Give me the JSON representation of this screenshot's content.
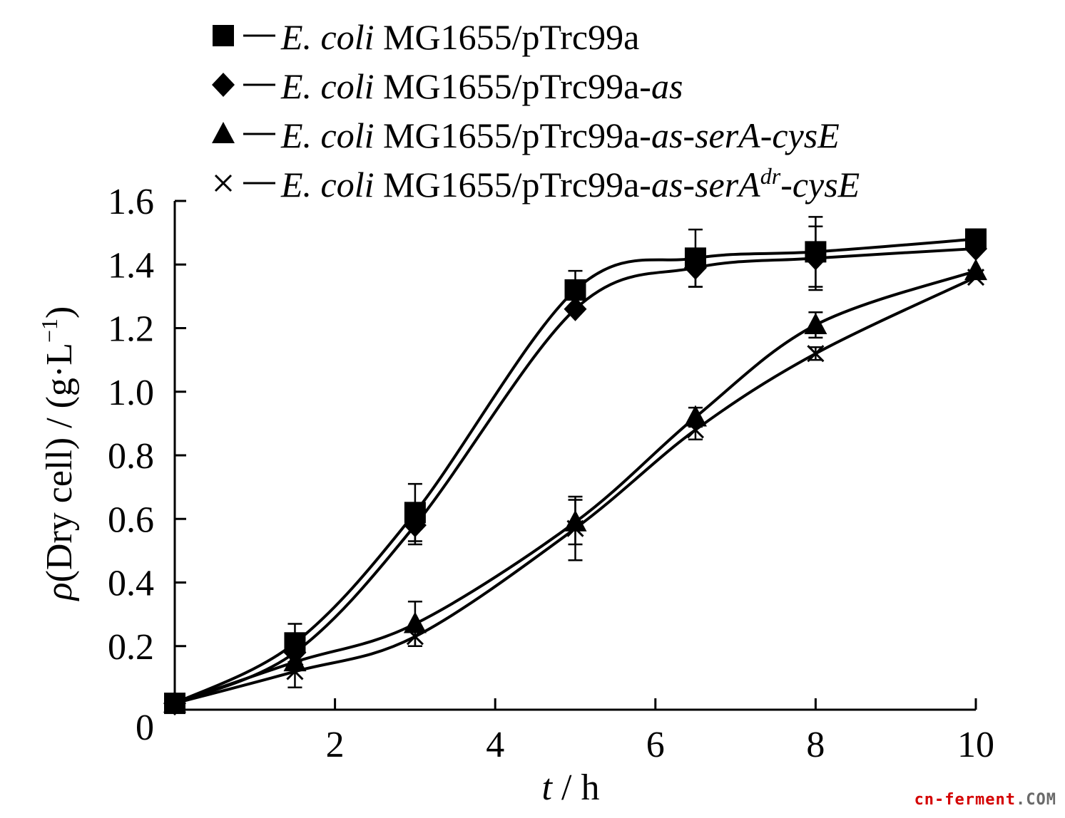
{
  "chart_data": {
    "type": "line",
    "title": "",
    "xlabel_var": "t",
    "xlabel_unit": " / h",
    "ylabel_prefix": "(Dry cell) / (g·L",
    "ylabel_sup": "−1",
    "ylabel_suffix": ")",
    "ylabel_symbol": "ρ",
    "xlim": [
      0,
      10
    ],
    "ylim": [
      0,
      1.6
    ],
    "x_ticks": [
      2,
      4,
      6,
      8,
      10
    ],
    "x_tick_labels": [
      "2",
      "4",
      "6",
      "8",
      "10"
    ],
    "y_ticks": [
      0,
      0.2,
      0.4,
      0.6,
      0.8,
      1.0,
      1.2,
      1.4,
      1.6
    ],
    "y_tick_labels": [
      "0",
      "0.2",
      "0.4",
      "0.6",
      "0.8",
      "1.0",
      "1.2",
      "1.4",
      "1.6"
    ],
    "grid": false,
    "legend_position": "top",
    "x": [
      0,
      1.5,
      3,
      5,
      6.5,
      8,
      10
    ],
    "series": [
      {
        "name": "E. coli MG1655/pTrc99a",
        "legend_parts": [
          {
            "text": "E. coli",
            "italic": true
          },
          {
            "text": " MG1655/pTrc99a",
            "italic": false
          }
        ],
        "marker": "square",
        "values": [
          0.02,
          0.21,
          0.62,
          1.32,
          1.42,
          1.44,
          1.48
        ],
        "errors": [
          0,
          0.06,
          0.09,
          0.06,
          0.09,
          0.11,
          0
        ]
      },
      {
        "name": "E. coli MG1655/pTrc99a-as",
        "legend_parts": [
          {
            "text": "E. coli",
            "italic": true
          },
          {
            "text": " MG1655/pTrc99a-",
            "italic": false
          },
          {
            "text": "as",
            "italic": true
          }
        ],
        "marker": "diamond",
        "values": [
          0.02,
          0.18,
          0.58,
          1.26,
          1.39,
          1.42,
          1.45
        ],
        "errors": [
          0,
          0,
          0.06,
          0,
          0.06,
          0.1,
          0
        ]
      },
      {
        "name": "E. coli MG1655/pTrc99a-as-serA-cysE",
        "legend_parts": [
          {
            "text": "E. coli",
            "italic": true
          },
          {
            "text": " MG1655/pTrc99a-",
            "italic": false
          },
          {
            "text": "as-serA-cysE",
            "italic": true
          }
        ],
        "marker": "triangle",
        "values": [
          0.02,
          0.15,
          0.27,
          0.59,
          0.92,
          1.21,
          1.38
        ],
        "errors": [
          0,
          0,
          0.07,
          0.07,
          0.03,
          0.04,
          0
        ]
      },
      {
        "name": "E. coli MG1655/pTrc99a-as-serAdr-cysE",
        "legend_parts": [
          {
            "text": "E. coli",
            "italic": true
          },
          {
            "text": " MG1655/pTrc99a-",
            "italic": false
          },
          {
            "text": "as-serA",
            "italic": true
          },
          {
            "text": "dr",
            "italic": true,
            "sup": true
          },
          {
            "text": "-cysE",
            "italic": true
          }
        ],
        "marker": "cross",
        "values": [
          0.02,
          0.12,
          0.23,
          0.57,
          0.88,
          1.12,
          1.36
        ],
        "errors": [
          0,
          0.05,
          0.03,
          0.1,
          0.03,
          0.02,
          0
        ]
      }
    ]
  },
  "watermark": "cn-ferment.COM",
  "colors": {
    "ink": "#000000",
    "background": "#ffffff",
    "watermark_red": "#d40000",
    "watermark_gray": "#6a6a6a"
  }
}
